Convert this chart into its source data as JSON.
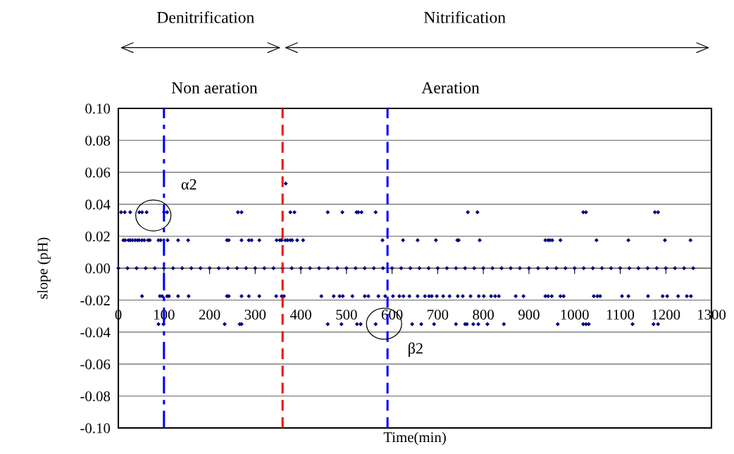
{
  "chart_data": {
    "type": "scatter",
    "title": null,
    "xlabel": "Time(min)",
    "ylabel": "slope (pH)",
    "xlim": [
      0,
      1300
    ],
    "xticks": [
      0,
      100,
      200,
      300,
      400,
      500,
      600,
      700,
      800,
      900,
      1000,
      1100,
      1200,
      1300
    ],
    "ylim": [
      -0.1,
      0.1
    ],
    "yticks": [
      {
        "value": -0.1,
        "label": "-0.10"
      },
      {
        "value": -0.08,
        "label": "-0.08"
      },
      {
        "value": -0.06,
        "label": "-0.06"
      },
      {
        "value": -0.04,
        "label": "-0.04"
      },
      {
        "value": -0.02,
        "label": "-0.02"
      },
      {
        "value": 0,
        "label": "0.00"
      },
      {
        "value": 0.02,
        "label": "0.02"
      },
      {
        "value": 0.04,
        "label": "0.04"
      },
      {
        "value": 0.06,
        "label": "0.06"
      },
      {
        "value": 0.08,
        "label": "0.08"
      },
      {
        "value": 0.1,
        "label": "0.10"
      }
    ],
    "grid": "y",
    "marker": "diamond",
    "series": [
      {
        "color": "#000080",
        "x": [
          0,
          20,
          40,
          60,
          80,
          100,
          120,
          140,
          160,
          180,
          200,
          220,
          240,
          260,
          280,
          300,
          320,
          340,
          360,
          380,
          400,
          420,
          440,
          460,
          480,
          500,
          520,
          540,
          560,
          580,
          600,
          620,
          640,
          660,
          680,
          700,
          720,
          740,
          760,
          780,
          800,
          820,
          840,
          860,
          880,
          900,
          920,
          940,
          960,
          980,
          1000,
          1020,
          1040,
          1060,
          1080,
          1100,
          1120,
          1140,
          1160,
          1180,
          1200,
          1220,
          1240,
          1260,
          6,
          14,
          26,
          46,
          52,
          62,
          100,
          107,
          262,
          270,
          377,
          386,
          459,
          491,
          522,
          526,
          533,
          564,
          766,
          787,
          1019,
          1025,
          1176,
          1183,
          367,
          11,
          15,
          22,
          26,
          31,
          37,
          42,
          46,
          52,
          57,
          65,
          69,
          88,
          93,
          108,
          131,
          153,
          238,
          242,
          270,
          286,
          292,
          309,
          347,
          354,
          358,
          366,
          371,
          377,
          381,
          392,
          405,
          579,
          624,
          656,
          696,
          743,
          746,
          792,
          936,
          942,
          946,
          951,
          969,
          1048,
          1118,
          1198,
          1254,
          52,
          91,
          96,
          107,
          111,
          131,
          154,
          238,
          242,
          270,
          286,
          309,
          346,
          358,
          363,
          445,
          472,
          485,
          492,
          513,
          540,
          548,
          570,
          585,
          602,
          616,
          625,
          638,
          656,
          672,
          681,
          687,
          698,
          712,
          726,
          744,
          755,
          772,
          790,
          801,
          817,
          826,
          834,
          871,
          888,
          936,
          942,
          950,
          969,
          976,
          1042,
          1050,
          1056,
          1104,
          1118,
          1161,
          1193,
          1203,
          1227,
          1246,
          1255,
          88,
          99,
          233,
          266,
          270,
          459,
          489,
          523,
          531,
          564,
          644,
          664,
          692,
          740,
          760,
          764,
          778,
          789,
          809,
          845,
          963,
          1019,
          1025,
          1031,
          1127,
          1173,
          1183
        ],
        "values": [
          0,
          0,
          0,
          0,
          0,
          0,
          0,
          0,
          0,
          0,
          0,
          0,
          0,
          0,
          0,
          0,
          0,
          0,
          0,
          0,
          0,
          0,
          0,
          0,
          0,
          0,
          0,
          0,
          0,
          0,
          0,
          0,
          0,
          0,
          0,
          0,
          0,
          0,
          0,
          0,
          0,
          0,
          0,
          0,
          0,
          0,
          0,
          0,
          0,
          0,
          0,
          0,
          0,
          0,
          0,
          0,
          0,
          0,
          0,
          0,
          0,
          0,
          0,
          0,
          0.035,
          0.035,
          0.035,
          0.035,
          0.035,
          0.035,
          0.035,
          0.035,
          0.035,
          0.035,
          0.035,
          0.035,
          0.035,
          0.035,
          0.035,
          0.035,
          0.035,
          0.035,
          0.035,
          0.035,
          0.035,
          0.035,
          0.035,
          0.035,
          0.053,
          0.0175,
          0.0175,
          0.0175,
          0.0175,
          0.0175,
          0.0175,
          0.0175,
          0.0175,
          0.0175,
          0.0175,
          0.0175,
          0.0175,
          0.0175,
          0.0175,
          0.0175,
          0.0175,
          0.0175,
          0.0175,
          0.0175,
          0.0175,
          0.0175,
          0.0175,
          0.0175,
          0.0175,
          0.0175,
          0.0175,
          0.0175,
          0.0175,
          0.0175,
          0.0175,
          0.0175,
          0.0175,
          0.0175,
          0.0175,
          0.0175,
          0.0175,
          0.0175,
          0.0175,
          0.0175,
          0.0175,
          0.0175,
          0.0175,
          0.0175,
          0.0175,
          0.0175,
          0.0175,
          0.0175,
          0.0175,
          -0.0175,
          -0.0175,
          -0.0175,
          -0.0175,
          -0.0175,
          -0.0175,
          -0.0175,
          -0.0175,
          -0.0175,
          -0.0175,
          -0.0175,
          -0.0175,
          -0.0175,
          -0.0175,
          -0.0175,
          -0.0175,
          -0.0175,
          -0.0175,
          -0.0175,
          -0.0175,
          -0.0175,
          -0.0175,
          -0.0175,
          -0.0175,
          -0.0175,
          -0.0175,
          -0.0175,
          -0.0175,
          -0.0175,
          -0.0175,
          -0.0175,
          -0.0175,
          -0.0175,
          -0.0175,
          -0.0175,
          -0.0175,
          -0.0175,
          -0.0175,
          -0.0175,
          -0.0175,
          -0.0175,
          -0.0175,
          -0.0175,
          -0.0175,
          -0.0175,
          -0.0175,
          -0.0175,
          -0.0175,
          -0.0175,
          -0.0175,
          -0.0175,
          -0.0175,
          -0.0175,
          -0.0175,
          -0.0175,
          -0.0175,
          -0.0175,
          -0.0175,
          -0.0175,
          -0.0175,
          -0.0175,
          -0.035,
          -0.035,
          -0.035,
          -0.035,
          -0.035,
          -0.035,
          -0.035,
          -0.035,
          -0.035,
          -0.035,
          -0.035,
          -0.035,
          -0.035,
          -0.035,
          -0.035,
          -0.035,
          -0.035,
          -0.035,
          -0.035,
          -0.035,
          -0.035,
          -0.035,
          -0.035,
          -0.035,
          -0.035,
          -0.035,
          -0.035
        ]
      }
    ],
    "ref_lines": [
      {
        "axis": "x",
        "value": 100,
        "color": "#0000ff",
        "line_style": "dashdot"
      },
      {
        "axis": "x",
        "value": 360,
        "color": "#ff0000",
        "line_style": "dashed"
      },
      {
        "axis": "x",
        "value": 590,
        "color": "#0000ff",
        "line_style": "dashed"
      }
    ],
    "annotations": [
      "α2",
      "β2",
      "Denitrification",
      "Nitrification",
      "Non aeration",
      "Aeration"
    ]
  }
}
